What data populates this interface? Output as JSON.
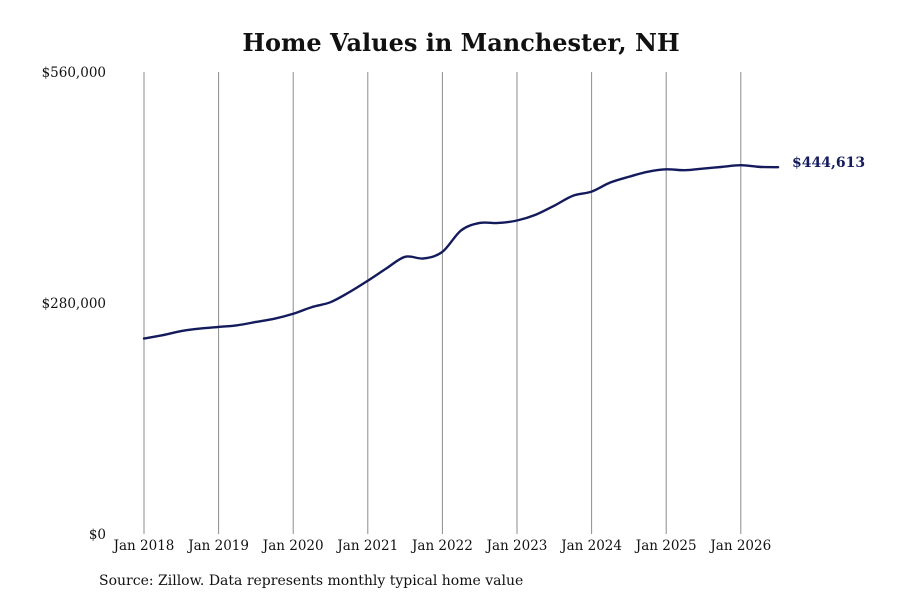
{
  "chart_data": {
    "type": "line",
    "title": "Home Values in Manchester, NH",
    "xlabel": "",
    "ylabel": "",
    "ylim": [
      0,
      560000
    ],
    "y_ticks": [
      0,
      280000,
      560000
    ],
    "y_tick_labels": [
      "$0",
      "$280,000",
      "$560,000"
    ],
    "x_ticks": [
      "2018-01",
      "2019-01",
      "2020-01",
      "2021-01",
      "2022-01",
      "2023-01",
      "2024-01",
      "2025-01",
      "2026-01"
    ],
    "x_tick_labels": [
      "Jan 2018",
      "Jan 2019",
      "Jan 2020",
      "Jan 2021",
      "Jan 2022",
      "Jan 2023",
      "Jan 2024",
      "Jan 2025",
      "Jan 2026"
    ],
    "vertical_grid": true,
    "horizontal_grid": false,
    "line_color": "#141b5c",
    "end_label": "$444,613",
    "series": [
      {
        "x": [
          "2018-01",
          "2018-04",
          "2018-07",
          "2018-10",
          "2019-01",
          "2019-04",
          "2019-07",
          "2019-10",
          "2020-01",
          "2020-04",
          "2020-07",
          "2020-10",
          "2021-01",
          "2021-04",
          "2021-07",
          "2021-10",
          "2022-01",
          "2022-04",
          "2022-07",
          "2022-10",
          "2023-01",
          "2023-04",
          "2023-07",
          "2023-10",
          "2024-01",
          "2024-04",
          "2024-07",
          "2024-10",
          "2025-01",
          "2025-04",
          "2025-07",
          "2025-10",
          "2026-01",
          "2026-04",
          "2026-07"
        ],
        "values": [
          237000,
          241000,
          246000,
          249000,
          251000,
          253000,
          257000,
          261000,
          267000,
          275000,
          281000,
          293000,
          307000,
          322000,
          336000,
          334000,
          342000,
          368000,
          377000,
          377000,
          380000,
          387000,
          398000,
          410000,
          415000,
          426000,
          433000,
          439000,
          442000,
          441000,
          443000,
          445000,
          447000,
          445000,
          444613
        ]
      }
    ]
  },
  "source_note": "Source: Zillow. Data represents monthly typical home value"
}
